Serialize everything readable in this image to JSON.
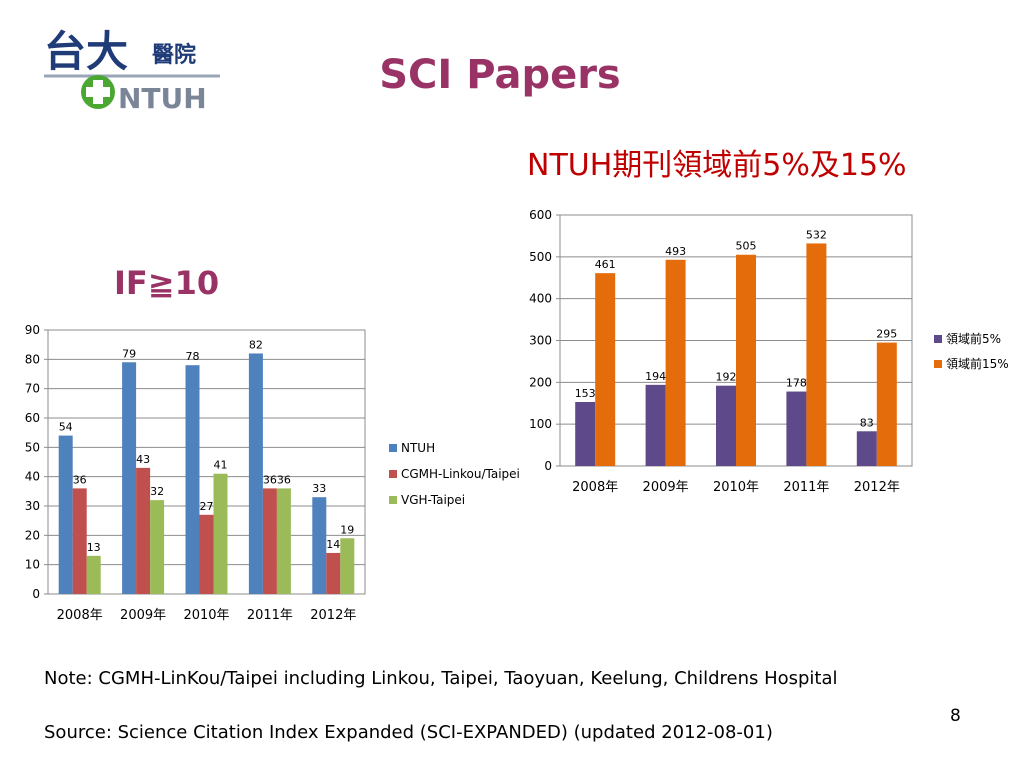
{
  "slide": {
    "title": "SCI Papers",
    "logo": {
      "text_cn": "台大醫院",
      "text_en": "NTUH"
    },
    "note": "Note: CGMH-LinKou/Taipei including Linkou, Taipei, Taoyuan, Keelung, Childrens Hospital",
    "source": "Source: Science Citation Index Expanded (SCI-EXPANDED) (updated 2012-08-01)",
    "page_number": "8"
  },
  "colors": {
    "title": "#993366",
    "right_title": "#c00000",
    "ntuh_blue": "#4f81bd",
    "cgmh_red": "#c0504d",
    "vgh_green": "#9bbb59",
    "top5_purple": "#5e4a8b",
    "top15_orange": "#e46c0a",
    "grid": "#8c8c8c"
  },
  "chart_data": [
    {
      "type": "bar",
      "title": "IF≧10",
      "categories": [
        "2008年",
        "2009年",
        "2010年",
        "2011年",
        "2012年"
      ],
      "series": [
        {
          "name": "NTUH",
          "values": [
            54,
            79,
            78,
            82,
            33
          ]
        },
        {
          "name": "CGMH-Linkou/Taipei",
          "values": [
            36,
            43,
            27,
            36,
            14
          ]
        },
        {
          "name": "VGH-Taipei",
          "values": [
            13,
            32,
            41,
            36,
            19
          ]
        }
      ],
      "ylim": [
        0,
        90
      ],
      "yticks": [
        0,
        10,
        20,
        30,
        40,
        50,
        60,
        70,
        80,
        90
      ],
      "grid": true,
      "legend": "right"
    },
    {
      "type": "bar",
      "title": "NTUH期刊領域前5%及15%",
      "categories": [
        "2008年",
        "2009年",
        "2010年",
        "2011年",
        "2012年"
      ],
      "series": [
        {
          "name": "領域前5%",
          "values": [
            153,
            194,
            192,
            178,
            83
          ]
        },
        {
          "name": "領域前15%",
          "values": [
            461,
            493,
            505,
            532,
            295
          ]
        }
      ],
      "ylim": [
        0,
        600
      ],
      "yticks": [
        0,
        100,
        200,
        300,
        400,
        500,
        600
      ],
      "grid": true,
      "legend": "right"
    }
  ]
}
